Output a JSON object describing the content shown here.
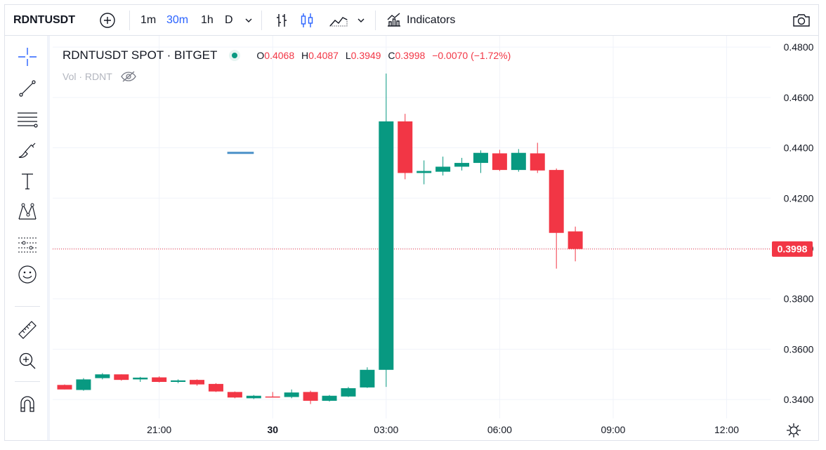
{
  "toolbar": {
    "symbol": "RDNTUSDT",
    "timeframes": [
      "1m",
      "30m",
      "1h",
      "D"
    ],
    "active_timeframe": "30m",
    "indicators_label": "Indicators",
    "icons": [
      "add-symbol-icon",
      "chevron-down-icon",
      "bar-style-icon",
      "candle-style-icon",
      "area-style-icon",
      "chevron-down-icon",
      "indicators-icon",
      "camera-icon"
    ]
  },
  "sidebar": {
    "tools": [
      "crosshair-icon",
      "trend-line-icon",
      "fib-icon",
      "brush-icon",
      "text-icon",
      "pattern-icon",
      "forecast-icon",
      "emoji-icon",
      "ruler-icon",
      "zoom-in-icon",
      "magnet-icon"
    ]
  },
  "legend": {
    "title": "RDNTUSDT SPOT · BITGET",
    "o_label": "O",
    "o_value": "0.4068",
    "h_label": "H",
    "h_value": "0.4087",
    "l_label": "L",
    "l_value": "0.3949",
    "c_label": "C",
    "c_value": "0.3998",
    "change": "−0.0070 (−1.72%)",
    "volume_label": "Vol · RDNT"
  },
  "colors": {
    "up": "#089981",
    "down": "#f23645",
    "accent": "#2962ff",
    "grid": "#f0f3fa"
  },
  "chart_data": {
    "type": "candlestick",
    "title": "RDNTUSDT SPOT · BITGET",
    "interval": "30m",
    "y_ticks": [
      "0.4800",
      "0.4600",
      "0.4400",
      "0.4200",
      "0.4000",
      "0.3800",
      "0.3600",
      "0.3400"
    ],
    "x_ticks": [
      "21:00",
      "30",
      "03:00",
      "06:00",
      "09:00",
      "12:00"
    ],
    "ylim": [
      0.3325,
      0.4845
    ],
    "last_price": "0.3998",
    "candles": [
      {
        "o": 0.3458,
        "h": 0.346,
        "l": 0.344,
        "c": 0.344
      },
      {
        "o": 0.3438,
        "h": 0.3485,
        "l": 0.3435,
        "c": 0.348
      },
      {
        "o": 0.3485,
        "h": 0.3505,
        "l": 0.348,
        "c": 0.35
      },
      {
        "o": 0.35,
        "h": 0.35,
        "l": 0.3475,
        "c": 0.3478
      },
      {
        "o": 0.348,
        "h": 0.349,
        "l": 0.347,
        "c": 0.3487
      },
      {
        "o": 0.3488,
        "h": 0.3492,
        "l": 0.3468,
        "c": 0.347
      },
      {
        "o": 0.347,
        "h": 0.348,
        "l": 0.3465,
        "c": 0.3476
      },
      {
        "o": 0.3478,
        "h": 0.348,
        "l": 0.3455,
        "c": 0.346
      },
      {
        "o": 0.3462,
        "h": 0.3465,
        "l": 0.343,
        "c": 0.3432
      },
      {
        "o": 0.343,
        "h": 0.3432,
        "l": 0.3405,
        "c": 0.3408
      },
      {
        "o": 0.3405,
        "h": 0.3418,
        "l": 0.3402,
        "c": 0.3415
      },
      {
        "o": 0.3412,
        "h": 0.343,
        "l": 0.341,
        "c": 0.341
      },
      {
        "o": 0.341,
        "h": 0.344,
        "l": 0.3405,
        "c": 0.3428
      },
      {
        "o": 0.343,
        "h": 0.3435,
        "l": 0.3382,
        "c": 0.3395
      },
      {
        "o": 0.3395,
        "h": 0.3418,
        "l": 0.3392,
        "c": 0.3415
      },
      {
        "o": 0.3412,
        "h": 0.345,
        "l": 0.341,
        "c": 0.3445
      },
      {
        "o": 0.3448,
        "h": 0.3528,
        "l": 0.3446,
        "c": 0.3518
      },
      {
        "o": 0.3518,
        "h": 0.4695,
        "l": 0.345,
        "c": 0.4505
      },
      {
        "o": 0.4505,
        "h": 0.4535,
        "l": 0.4275,
        "c": 0.43
      },
      {
        "o": 0.43,
        "h": 0.435,
        "l": 0.4255,
        "c": 0.4308
      },
      {
        "o": 0.4305,
        "h": 0.4365,
        "l": 0.429,
        "c": 0.4325
      },
      {
        "o": 0.4325,
        "h": 0.436,
        "l": 0.431,
        "c": 0.434
      },
      {
        "o": 0.434,
        "h": 0.439,
        "l": 0.43,
        "c": 0.438
      },
      {
        "o": 0.4378,
        "h": 0.4392,
        "l": 0.4308,
        "c": 0.4312
      },
      {
        "o": 0.4312,
        "h": 0.4395,
        "l": 0.4305,
        "c": 0.438
      },
      {
        "o": 0.4378,
        "h": 0.442,
        "l": 0.43,
        "c": 0.431
      },
      {
        "o": 0.4312,
        "h": 0.4318,
        "l": 0.392,
        "c": 0.4062
      },
      {
        "o": 0.4068,
        "h": 0.4087,
        "l": 0.3949,
        "c": 0.3998
      }
    ],
    "price_line": {
      "value": 0.438,
      "from_index": 8.6,
      "to_index": 10.0
    }
  }
}
